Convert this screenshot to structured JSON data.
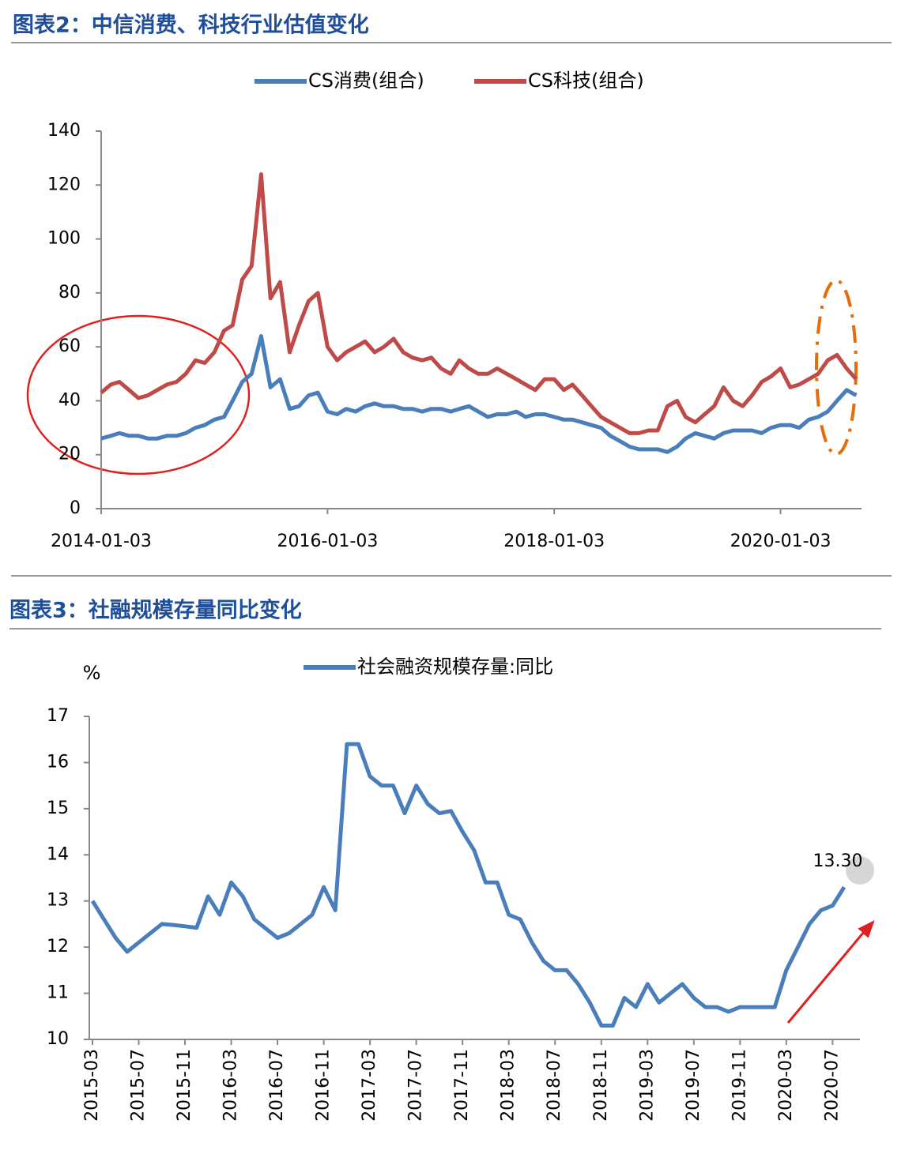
{
  "chart_data": [
    {
      "type": "line",
      "title": "图表2：中信消费、科技行业估值变化",
      "x": [
        "2014-01-03",
        "2014-02-03",
        "2014-03-03",
        "2014-04-03",
        "2014-05-03",
        "2014-06-03",
        "2014-07-03",
        "2014-08-03",
        "2014-09-03",
        "2014-10-03",
        "2014-11-03",
        "2014-12-03",
        "2015-01-03",
        "2015-02-03",
        "2015-03-03",
        "2015-04-03",
        "2015-05-03",
        "2015-06-03",
        "2015-07-03",
        "2015-08-03",
        "2015-09-03",
        "2015-10-03",
        "2015-11-03",
        "2015-12-03",
        "2016-01-03",
        "2016-02-03",
        "2016-03-03",
        "2016-04-03",
        "2016-05-03",
        "2016-06-03",
        "2016-07-03",
        "2016-08-03",
        "2016-09-03",
        "2016-10-03",
        "2016-11-03",
        "2016-12-03",
        "2017-01-03",
        "2017-02-03",
        "2017-03-03",
        "2017-04-03",
        "2017-05-03",
        "2017-06-03",
        "2017-07-03",
        "2017-08-03",
        "2017-09-03",
        "2017-10-03",
        "2017-11-03",
        "2017-12-03",
        "2018-01-03",
        "2018-02-03",
        "2018-03-03",
        "2018-04-03",
        "2018-05-03",
        "2018-06-03",
        "2018-07-03",
        "2018-08-03",
        "2018-09-03",
        "2018-10-03",
        "2018-11-03",
        "2018-12-03",
        "2019-01-03",
        "2019-02-03",
        "2019-03-03",
        "2019-04-03",
        "2019-05-03",
        "2019-06-03",
        "2019-07-03",
        "2019-08-03",
        "2019-09-03",
        "2019-10-03",
        "2019-11-03",
        "2019-12-03",
        "2020-01-03",
        "2020-02-03",
        "2020-03-03",
        "2020-04-03",
        "2020-05-03",
        "2020-06-03",
        "2020-07-03",
        "2020-08-03",
        "2020-09-03"
      ],
      "series": [
        {
          "name": "CS消费(组合)",
          "color": "#4a7ebb",
          "values": [
            26,
            27,
            28,
            27,
            27,
            26,
            26,
            27,
            27,
            28,
            30,
            31,
            33,
            34,
            40,
            47,
            50,
            64,
            45,
            48,
            37,
            38,
            42,
            43,
            36,
            35,
            37,
            36,
            38,
            39,
            38,
            38,
            37,
            37,
            36,
            37,
            37,
            36,
            37,
            38,
            36,
            34,
            35,
            35,
            36,
            34,
            35,
            35,
            34,
            33,
            33,
            32,
            31,
            30,
            27,
            25,
            23,
            22,
            22,
            22,
            21,
            23,
            26,
            28,
            27,
            26,
            28,
            29,
            29,
            29,
            28,
            30,
            31,
            31,
            30,
            33,
            34,
            36,
            40,
            44,
            42
          ]
        },
        {
          "name": "CS科技(组合)",
          "color": "#be4b48",
          "values": [
            43,
            46,
            47,
            44,
            41,
            42,
            44,
            46,
            47,
            50,
            55,
            54,
            58,
            66,
            68,
            85,
            90,
            124,
            78,
            84,
            58,
            68,
            77,
            80,
            60,
            55,
            58,
            60,
            62,
            58,
            60,
            63,
            58,
            56,
            55,
            56,
            52,
            50,
            55,
            52,
            50,
            50,
            52,
            50,
            48,
            46,
            44,
            48,
            48,
            44,
            46,
            42,
            38,
            34,
            32,
            30,
            28,
            28,
            29,
            29,
            38,
            40,
            34,
            32,
            35,
            38,
            45,
            40,
            38,
            42,
            47,
            49,
            52,
            45,
            46,
            48,
            50,
            55,
            57,
            52,
            48
          ]
        }
      ],
      "xlim": [
        "2014-01-03",
        "2020-09-20"
      ],
      "xticks": [
        "2014-01-03",
        "2016-01-03",
        "2018-01-03",
        "2020-01-03"
      ],
      "ylim": [
        0,
        140
      ],
      "yticks": [
        0,
        20,
        40,
        60,
        80,
        100,
        120,
        140
      ]
    },
    {
      "type": "line",
      "title": "图表3：社融规模存量同比变化",
      "y_label": "%",
      "categories": [
        "2015-03",
        null,
        null,
        null,
        "2015-07",
        null,
        null,
        null,
        "2015-11",
        null,
        null,
        null,
        "2016-03",
        null,
        null,
        null,
        "2016-07",
        null,
        null,
        null,
        "2016-11",
        null,
        null,
        null,
        "2017-03",
        null,
        null,
        null,
        "2017-07",
        null,
        null,
        null,
        "2017-11",
        null,
        null,
        null,
        "2018-03",
        null,
        null,
        null,
        "2018-07",
        null,
        null,
        null,
        "2018-11",
        null,
        null,
        null,
        "2019-03",
        null,
        null,
        null,
        "2019-07",
        null,
        null,
        null,
        "2019-11",
        null,
        null,
        null,
        "2020-03",
        null,
        null,
        null,
        "2020-07",
        null
      ],
      "series": [
        {
          "name": "社会融资规模存量:同比",
          "color": "#4a7ebb",
          "values": [
            13.0,
            12.6,
            12.2,
            11.9,
            12.1,
            12.3,
            12.5,
            12.48,
            12.45,
            12.42,
            13.1,
            12.7,
            13.4,
            13.1,
            12.6,
            12.4,
            12.2,
            12.3,
            12.5,
            12.7,
            13.3,
            12.8,
            16.4,
            16.4,
            15.7,
            15.5,
            15.5,
            14.9,
            15.5,
            15.1,
            14.9,
            14.95,
            14.5,
            14.1,
            13.4,
            13.4,
            12.7,
            12.6,
            12.1,
            11.7,
            11.5,
            11.5,
            11.2,
            10.8,
            10.3,
            10.3,
            10.9,
            10.7,
            11.2,
            10.8,
            11.0,
            11.2,
            10.9,
            10.7,
            10.7,
            10.6,
            10.7,
            10.7,
            10.7,
            10.7,
            11.5,
            12.0,
            12.5,
            12.8,
            12.9,
            13.3
          ],
          "value_labels": [
            null,
            null,
            null,
            null,
            null,
            null,
            null,
            null,
            null,
            null,
            null,
            null,
            null,
            null,
            null,
            null,
            null,
            null,
            null,
            null,
            null,
            null,
            null,
            null,
            null,
            null,
            null,
            null,
            null,
            null,
            null,
            null,
            null,
            null,
            null,
            null,
            null,
            null,
            null,
            null,
            null,
            null,
            null,
            null,
            null,
            null,
            null,
            null,
            null,
            null,
            null,
            null,
            null,
            null,
            null,
            null,
            null,
            null,
            null,
            null,
            null,
            null,
            null,
            null,
            null,
            "13.30"
          ]
        }
      ],
      "ylim": [
        10,
        17
      ],
      "yticks": [
        10,
        11,
        12,
        13,
        14,
        15,
        16,
        17
      ]
    }
  ]
}
